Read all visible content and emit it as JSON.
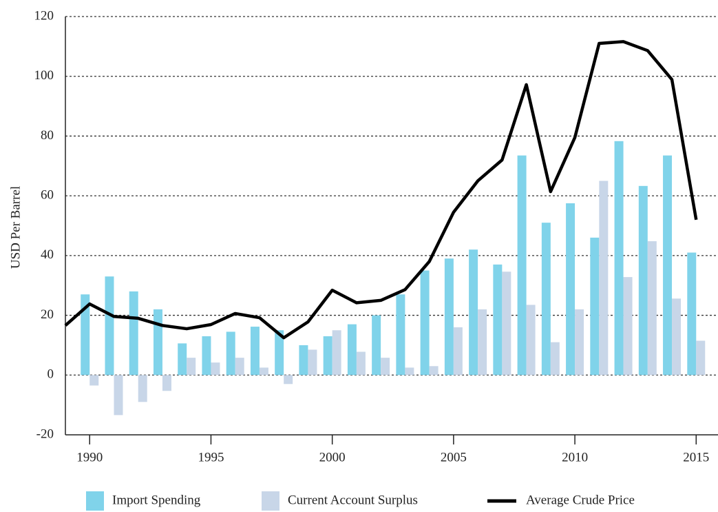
{
  "chart_data": {
    "type": "bar_line",
    "ylabel": "USD Per Barrel",
    "xlim": [
      1989,
      2015.9
    ],
    "ylim": [
      -20,
      120
    ],
    "xticks": [
      1990,
      1995,
      2000,
      2005,
      2010,
      2015
    ],
    "yticks": [
      -20,
      0,
      20,
      40,
      60,
      80,
      100,
      120
    ],
    "grid": true,
    "legend": "bottom",
    "series": [
      {
        "name": "Import Spending",
        "type": "bar",
        "color": "#80d3ea",
        "x": [
          1990,
          1991,
          1992,
          1993,
          1994,
          1995,
          1996,
          1997,
          1998,
          1999,
          2000,
          2001,
          2002,
          2003,
          2004,
          2005,
          2006,
          2007,
          2008,
          2009,
          2010,
          2011,
          2012,
          2013,
          2014,
          2015
        ],
        "values": [
          27,
          33,
          28,
          22,
          10.6,
          13,
          14.5,
          16.2,
          15,
          10,
          13,
          17,
          20,
          27,
          35,
          39,
          42,
          37,
          73.5,
          51,
          57.5,
          46,
          78.3,
          63.3,
          73.5,
          41
        ]
      },
      {
        "name": "Current Account Surplus",
        "type": "bar",
        "color": "#c8d6e8",
        "x": [
          1990,
          1991,
          1992,
          1993,
          1994,
          1995,
          1996,
          1997,
          1998,
          1999,
          2000,
          2001,
          2002,
          2003,
          2004,
          2005,
          2006,
          2007,
          2008,
          2009,
          2010,
          2011,
          2012,
          2013,
          2014,
          2015
        ],
        "values": [
          -3.5,
          -13.4,
          -9,
          -5.3,
          5.8,
          4.2,
          5.8,
          2.5,
          -3,
          8.5,
          15,
          7.8,
          5.8,
          2.5,
          3,
          16,
          22,
          34.6,
          23.5,
          11,
          22,
          65,
          32.8,
          44.8,
          25.6,
          11.5
        ]
      },
      {
        "name": "Average Crude Price",
        "type": "line",
        "color": "#000000",
        "x": [
          1989,
          1990,
          1991,
          1992,
          1993,
          1994,
          1995,
          1996,
          1997,
          1998,
          1999,
          2000,
          2001,
          2002,
          2003,
          2004,
          2005,
          2006,
          2007,
          2008,
          2009,
          2010,
          2011,
          2012,
          2013,
          2014,
          2015
        ],
        "values": [
          16.6,
          23.8,
          19.6,
          19,
          16.6,
          15.5,
          16.9,
          20.6,
          19.2,
          12.5,
          17.8,
          28.4,
          24.2,
          25,
          28.6,
          38,
          54.5,
          65,
          72,
          97.2,
          61.4,
          79.5,
          111,
          111.6,
          108.6,
          98.9,
          52
        ]
      }
    ]
  }
}
